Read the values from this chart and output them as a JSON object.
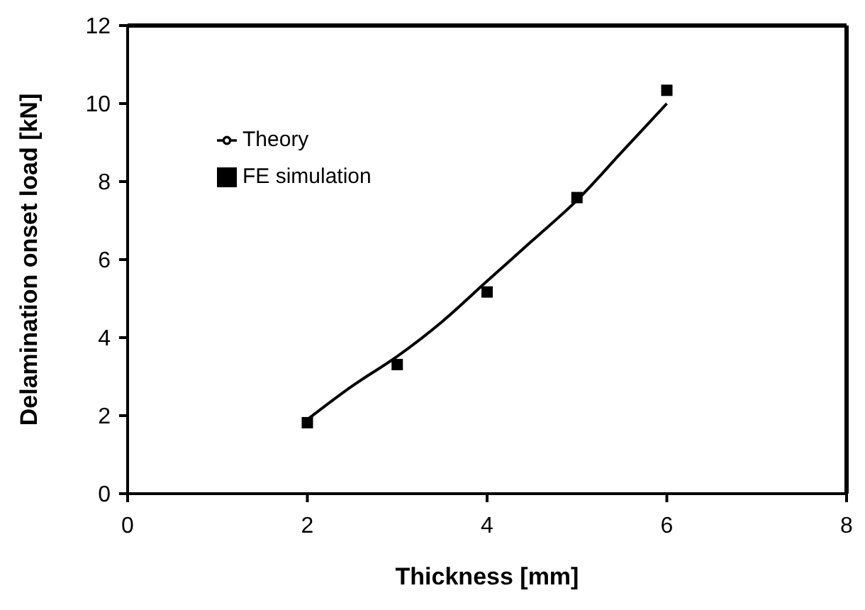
{
  "chart_data": {
    "type": "line",
    "xlabel": "Thickness [mm]",
    "ylabel": "Delamination onset load [kN]",
    "xlim": [
      0,
      8
    ],
    "xticks": [
      0,
      2,
      4,
      6,
      8
    ],
    "ylim": [
      0,
      12
    ],
    "yticks": [
      0,
      2,
      4,
      6,
      8,
      10,
      12
    ],
    "grid": false,
    "legend": "top left",
    "series": [
      {
        "name": "Theory",
        "type": "line",
        "color": "#000000",
        "marker": "none",
        "line_style": "solid",
        "x": [
          2,
          2.5,
          3,
          3.5,
          4,
          4.5,
          5,
          5.5,
          6
        ],
        "values": [
          1.9,
          2.76,
          3.52,
          4.41,
          5.45,
          6.48,
          7.52,
          8.76,
          10.0
        ]
      },
      {
        "name": "FE simulation",
        "type": "scatter",
        "color": "#000000",
        "marker": "square",
        "x": [
          2,
          3,
          4,
          5,
          6
        ],
        "values": [
          1.82,
          3.31,
          5.17,
          7.59,
          10.34
        ]
      }
    ]
  }
}
